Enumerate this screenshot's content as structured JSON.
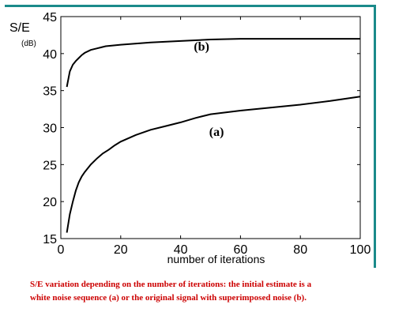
{
  "chart_data": {
    "type": "line",
    "title": "",
    "xlabel": "number of iterations",
    "ylabel": "S/E",
    "ylabel_unit": "(dB)",
    "xlim": [
      0,
      100
    ],
    "ylim": [
      15,
      45
    ],
    "xticks": [
      0,
      20,
      40,
      60,
      80,
      100
    ],
    "yticks": [
      15,
      20,
      25,
      30,
      35,
      40,
      45
    ],
    "grid": false,
    "annotations": [
      {
        "text": "(b)",
        "x": 47,
        "y": 40.4
      },
      {
        "text": "(a)",
        "x": 52,
        "y": 28.9
      }
    ],
    "series": [
      {
        "x": [
          2,
          3,
          4,
          5,
          6,
          7,
          8,
          10,
          12,
          14,
          16,
          18,
          20,
          25,
          30,
          35,
          40,
          45,
          50,
          60,
          70,
          80,
          90,
          100
        ],
        "y": [
          15.8,
          18.3,
          20.0,
          21.5,
          22.6,
          23.4,
          24.0,
          25.0,
          25.8,
          26.5,
          27.0,
          27.6,
          28.1,
          29.0,
          29.7,
          30.2,
          30.7,
          31.3,
          31.8,
          32.3,
          32.7,
          33.1,
          33.6,
          34.2
        ]
      },
      {
        "x": [
          2,
          3,
          4,
          5,
          6,
          7,
          8,
          10,
          12,
          15,
          20,
          30,
          40,
          50,
          60,
          70,
          80,
          90,
          100
        ],
        "y": [
          35.5,
          37.6,
          38.5,
          39.0,
          39.4,
          39.8,
          40.1,
          40.5,
          40.7,
          41.0,
          41.2,
          41.5,
          41.7,
          41.9,
          42.0,
          42.0,
          42.0,
          42.0,
          42.0
        ]
      }
    ]
  },
  "caption": {
    "line1": "S/E variation depending on the number of iterations: the initial estimate is a",
    "line2": "white noise sequence (a) or the original signal with superimposed noise (b)."
  }
}
